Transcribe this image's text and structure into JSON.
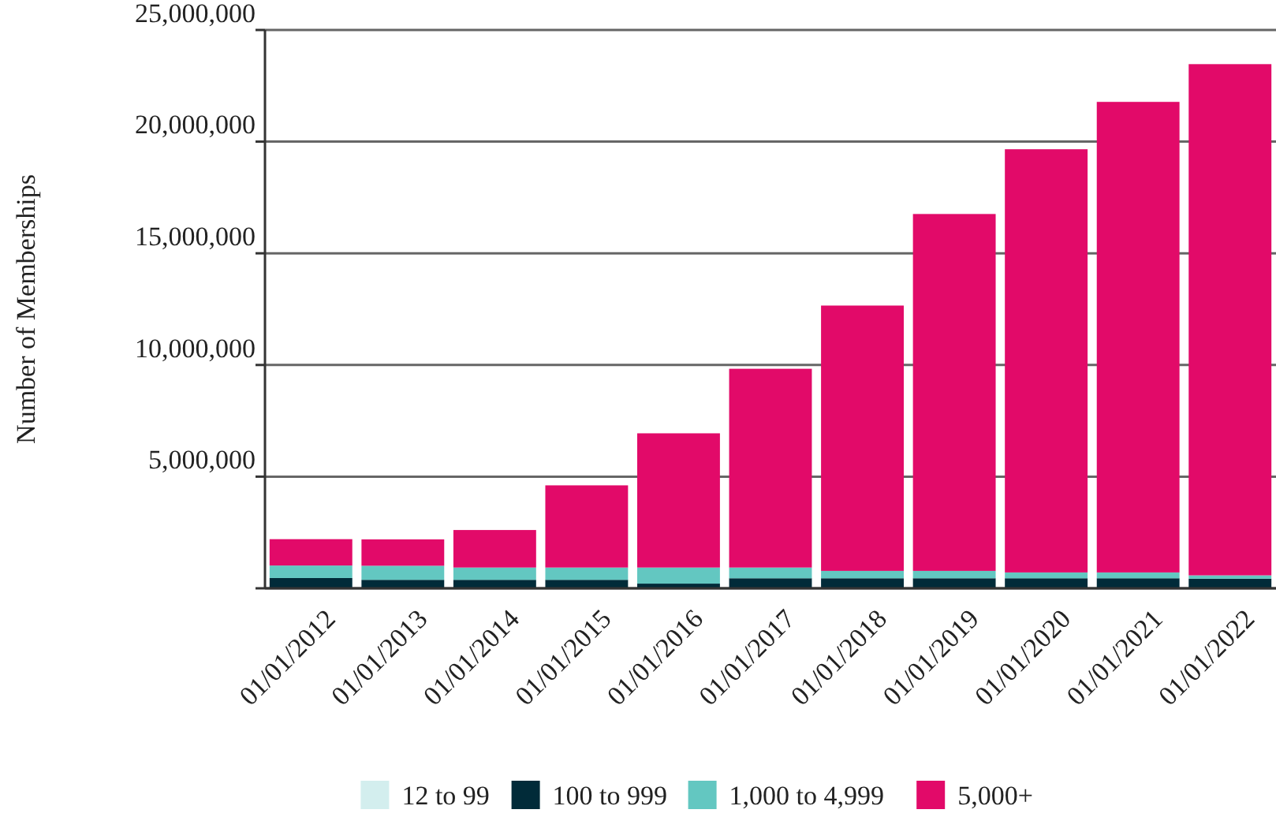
{
  "chart_data": {
    "type": "bar",
    "stacked": true,
    "ylabel": "Number of Memberships",
    "categories": [
      "01/01/2012",
      "01/01/2013",
      "01/01/2014",
      "01/01/2015",
      "01/01/2016",
      "01/01/2017",
      "01/01/2018",
      "01/01/2019",
      "01/01/2020",
      "01/01/2021",
      "01/01/2022"
    ],
    "series": [
      {
        "name": "12 to 99",
        "color": "#d3eeee",
        "values": [
          10000,
          10000,
          10000,
          10000,
          10000,
          10000,
          10000,
          10000,
          10000,
          10000,
          10000
        ]
      },
      {
        "name": "100 to 999",
        "color": "#012b39",
        "values": [
          450000,
          370000,
          370000,
          370000,
          200000,
          440000,
          440000,
          440000,
          440000,
          440000,
          420000
        ]
      },
      {
        "name": "1,000 to 4,999",
        "color": "#63c7c1",
        "values": [
          560000,
          630000,
          550000,
          550000,
          720000,
          480000,
          330000,
          330000,
          260000,
          260000,
          150000
        ]
      },
      {
        "name": "5,000+",
        "color": "#e20a69",
        "values": [
          1180000,
          1180000,
          1680000,
          3680000,
          6010000,
          8900000,
          11880000,
          15980000,
          18950000,
          21070000,
          22890000
        ]
      }
    ],
    "ylim": [
      0,
      25000000
    ],
    "yticks": [
      {
        "value": 0,
        "label": null
      },
      {
        "value": 5000000,
        "label": "5,000,000"
      },
      {
        "value": 10000000,
        "label": "10,000,000"
      },
      {
        "value": 15000000,
        "label": "15,000,000"
      },
      {
        "value": 20000000,
        "label": "20,000,000"
      },
      {
        "value": 25000000,
        "label": "25,000,000"
      }
    ],
    "grid": "y",
    "legend": "bottom"
  }
}
